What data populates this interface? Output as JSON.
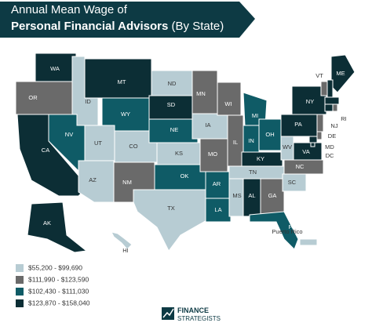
{
  "header": {
    "title_line1": "Annual Mean Wage of",
    "title_line2_bold": "Personal Financial Advisors",
    "title_line2_rest": "(By State)"
  },
  "legend": [
    {
      "label": "$55,200 - $99,690",
      "color": "#b7ccd3",
      "states": [
        "ID",
        "ND",
        "UT",
        "CO",
        "KS",
        "IA",
        "AZ",
        "TX",
        "TN",
        "MS",
        "SC",
        "WV",
        "HI",
        "Puerto Rico"
      ]
    },
    {
      "label": "$111,990 - $123,590",
      "color": "#6a6a6a",
      "states": [
        "OR",
        "MN",
        "WI",
        "MO",
        "IL",
        "NM",
        "NC",
        "GA",
        "NJ",
        "DE",
        "VT",
        "RI"
      ]
    },
    {
      "label": "$102,430 - $111,030",
      "color": "#0f5b66",
      "states": [
        "NV",
        "WY",
        "NE",
        "OK",
        "AR",
        "LA",
        "MI",
        "IN",
        "OH",
        "FL"
      ]
    },
    {
      "label": "$123,870 - $158,040",
      "color": "#0c2e35",
      "states": [
        "WA",
        "MT",
        "SD",
        "CA",
        "AL",
        "KY",
        "PA",
        "NY",
        "VA",
        "ME",
        "MD",
        "DC",
        "AK"
      ]
    }
  ],
  "logo": {
    "line1": "FINANCE",
    "line2": "STRATEGISTS"
  }
}
